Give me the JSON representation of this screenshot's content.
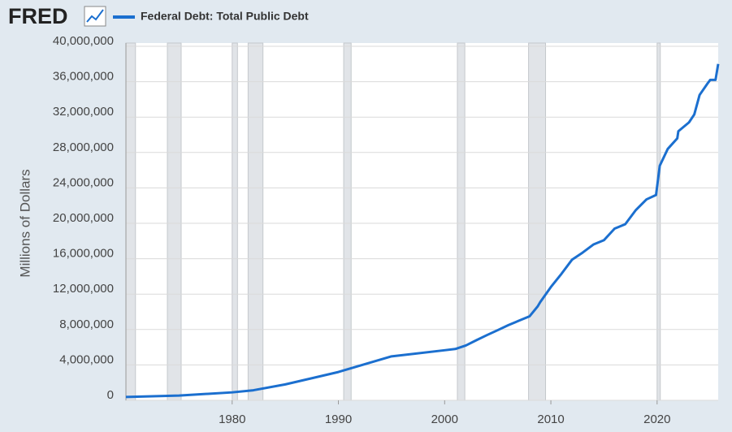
{
  "chart_data": {
    "type": "line",
    "logo": "FRED",
    "ylabel": "Millions of Dollars",
    "xlim": [
      1970,
      2025.75
    ],
    "xticks": [
      1980,
      1990,
      2000,
      2010,
      2020
    ],
    "ylim": [
      0,
      40000000
    ],
    "yticks": [
      0,
      {
        "value": 4000000,
        "label": "4,000,000"
      },
      {
        "value": 8000000,
        "label": "8,000,000"
      },
      {
        "value": 12000000,
        "label": "12,000,000"
      },
      {
        "value": 16000000,
        "label": "16,000,000"
      },
      {
        "value": 20000000,
        "label": "20,000,000"
      },
      {
        "value": 24000000,
        "label": "24,000,000"
      },
      {
        "value": 28000000,
        "label": "28,000,000"
      },
      {
        "value": 32000000,
        "label": "32,000,000"
      },
      {
        "value": 36000000,
        "label": "36,000,000"
      },
      {
        "value": 40000000,
        "label": "40,000,000"
      }
    ],
    "grid": true,
    "recessions": [
      [
        1970,
        1970.9
      ],
      [
        1973.9,
        1975.2
      ],
      [
        1980,
        1980.5
      ],
      [
        1981.5,
        1982.9
      ],
      [
        1990.5,
        1991.2
      ],
      [
        2001.2,
        2001.9
      ],
      [
        2007.9,
        2009.5
      ],
      [
        2020,
        2020.3
      ]
    ],
    "x": [
      1970,
      1975,
      1980,
      1982,
      1985,
      1990,
      1995,
      2000,
      2001,
      2002,
      2003,
      2004,
      2005,
      2006,
      2007,
      2008,
      2008.75,
      2009,
      2010,
      2011,
      2012,
      2013,
      2014,
      2015,
      2016,
      2017,
      2018,
      2019,
      2019.9,
      2020.25,
      2021,
      2021.9,
      2022,
      2023,
      2023.5,
      2024,
      2024.75,
      2025,
      2025.5,
      2025.75
    ],
    "series": [
      {
        "name": "Federal Debt: Total Public Debt",
        "color": "#1b6fcf",
        "values": [
          380000,
          540000,
          900000,
          1140000,
          1800000,
          3200000,
          4970000,
          5660000,
          5800000,
          6200000,
          6800000,
          7380000,
          7930000,
          8500000,
          9000000,
          9500000,
          10600000,
          11100000,
          12800000,
          14300000,
          15900000,
          16700000,
          17600000,
          18100000,
          19400000,
          19900000,
          21500000,
          22700000,
          23200000,
          26500000,
          28400000,
          29600000,
          30400000,
          31400000,
          32300000,
          34500000,
          35800000,
          36200000,
          36200000,
          38000000
        ]
      }
    ]
  }
}
